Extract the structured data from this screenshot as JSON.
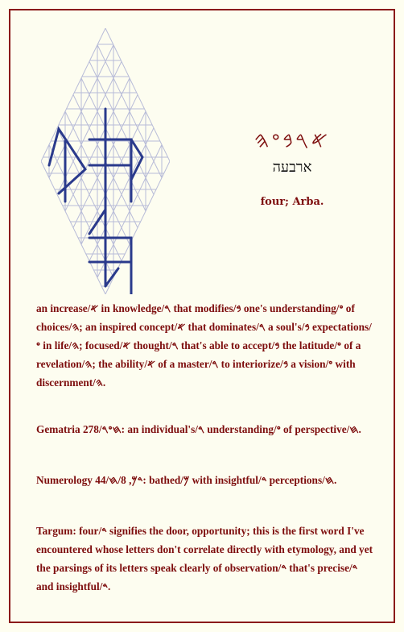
{
  "glyph_title": "𐤀𐤓𐤁𐤏𐤄",
  "hebrew": "ארבעה",
  "transliteration": "four; Arba.",
  "paragraphs": [
    "an increase/𐤀 in knowledge/𐤓 that modifies/𐤁 one's understanding/𐤏 of choices/𐤄; an inspired concept/𐤀 that dominates/𐤓 a soul's/𐤁 expectations/𐤏 in life/𐤄; focused/𐤀 thought/𐤓 that's able to accept/𐤁 the latitude/𐤏 of a revelation/𐤄; the ability/𐤀 of a master/𐤓 to interiorize/𐤁 a vision/𐤏 with discernment/𐤄.",
    "Gematria 278/𐤇𐤏𐤓: an individual's/𐤓 understanding/𐤏 of perspective/𐤇.",
    "Numerology 44/𐤃𐤌, 8/𐤇: bathed/𐤌 with insightful/𐤃 perceptions/𐤇.",
    "Targum: four/𐤃 signifies the door, opportunity; this is the first word I've encountered whose letters don't correlate directly with etymology, and yet the parsings of its letters speak clearly of observation/𐤃 that's precise/𐤃 and insightful/𐤃."
  ]
}
